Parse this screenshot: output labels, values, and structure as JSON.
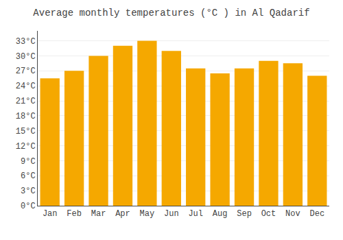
{
  "chart_data": {
    "type": "bar",
    "title": "Average monthly temperatures (°C ) in Al Qadarif",
    "categories": [
      "Jan",
      "Feb",
      "Mar",
      "Apr",
      "May",
      "Jun",
      "Jul",
      "Aug",
      "Sep",
      "Oct",
      "Nov",
      "Dec"
    ],
    "values": [
      25.5,
      27.0,
      30.0,
      32.0,
      33.0,
      31.0,
      27.5,
      26.5,
      27.5,
      29.0,
      28.5,
      26.0
    ],
    "color": "#F5A800",
    "ylim": [
      0,
      35
    ],
    "yticks": [
      {
        "value": 0,
        "label": "0°C"
      },
      {
        "value": 3,
        "label": "3°C"
      },
      {
        "value": 6,
        "label": "6°C"
      },
      {
        "value": 9,
        "label": "9°C"
      },
      {
        "value": 12,
        "label": "12°C"
      },
      {
        "value": 15,
        "label": "15°C"
      },
      {
        "value": 18,
        "label": "18°C"
      },
      {
        "value": 21,
        "label": "21°C"
      },
      {
        "value": 24,
        "label": "24°C"
      },
      {
        "value": 27,
        "label": "27°C"
      },
      {
        "value": 30,
        "label": "30°C"
      },
      {
        "value": 33,
        "label": "33°C"
      }
    ],
    "grid": true
  }
}
